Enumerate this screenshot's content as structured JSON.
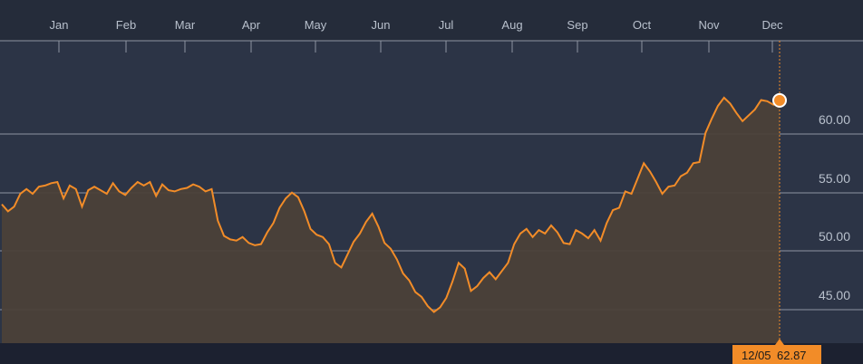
{
  "colors": {
    "background": "#252c3a",
    "plot_background": "#2c3446",
    "grid": "#8e95a1",
    "line": "#f28c28",
    "area": "#4b4139",
    "axis_text": "#b8c0cc",
    "badge_bg": "#f28c28",
    "badge_text": "#1b1b1b"
  },
  "chart_data": {
    "type": "area",
    "title": "",
    "xlabel": "",
    "ylabel": "",
    "x_tick_labels": [
      "Jan",
      "Feb",
      "Mar",
      "Apr",
      "May",
      "Jun",
      "Jul",
      "Aug",
      "Sep",
      "Oct",
      "Nov",
      "Dec"
    ],
    "y_tick_labels": [
      "60.00",
      "55.00",
      "50.00",
      "45.00"
    ],
    "ylim": [
      43,
      68
    ],
    "grid": true,
    "series": [
      {
        "values": [
          54.0,
          53.4,
          53.8,
          54.9,
          55.3,
          54.9,
          55.5,
          55.6,
          55.8,
          55.9,
          54.5,
          55.6,
          55.3,
          53.8,
          55.2,
          55.5,
          55.2,
          54.9,
          55.8,
          55.1,
          54.8,
          55.4,
          55.9,
          55.6,
          55.9,
          54.7,
          55.7,
          55.2,
          55.1,
          55.3,
          55.4,
          55.7,
          55.5,
          55.1,
          55.3,
          52.6,
          51.3,
          51.0,
          50.9,
          51.2,
          50.7,
          50.5,
          50.6,
          51.6,
          52.4,
          53.7,
          54.5,
          55.0,
          54.6,
          53.4,
          51.9,
          51.4,
          51.2,
          50.6,
          49.0,
          48.6,
          49.7,
          50.8,
          51.5,
          52.5,
          53.2,
          52.1,
          50.7,
          50.2,
          49.3,
          48.1,
          47.5,
          46.5,
          46.1,
          45.3,
          44.8,
          45.2,
          46.0,
          47.4,
          49.0,
          48.5,
          46.6,
          47.0,
          47.7,
          48.2,
          47.6,
          48.3,
          49.0,
          50.6,
          51.5,
          51.9,
          51.2,
          51.8,
          51.5,
          52.2,
          51.6,
          50.7,
          50.6,
          51.8,
          51.5,
          51.1,
          51.8,
          50.9,
          52.4,
          53.5,
          53.7,
          55.1,
          54.9,
          56.2,
          57.5,
          56.8,
          55.9,
          54.9,
          55.5,
          55.6,
          56.4,
          56.7,
          57.5,
          57.6,
          60.1,
          61.3,
          62.4,
          63.1,
          62.6,
          61.8,
          61.1,
          61.6,
          62.1,
          62.9,
          62.8,
          62.5,
          62.87
        ]
      }
    ],
    "last_point": {
      "date": "12/05",
      "value": "62.87"
    }
  }
}
